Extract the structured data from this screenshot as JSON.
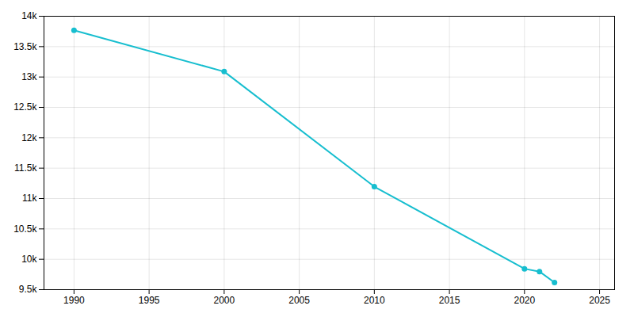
{
  "chart_data": {
    "type": "line",
    "x": [
      1990,
      2000,
      2010,
      2020,
      2021,
      2022
    ],
    "values": [
      13769,
      13089,
      11195,
      9844,
      9798,
      9617
    ],
    "color": "#17becf",
    "marker": "circle",
    "xlim": [
      1988,
      2026
    ],
    "ylim": [
      9500,
      14000
    ],
    "xticks": [
      1990,
      1995,
      2000,
      2005,
      2010,
      2015,
      2020,
      2025
    ],
    "yticks": [
      {
        "value": 9500,
        "label": "9.5k"
      },
      {
        "value": 10000,
        "label": "10k"
      },
      {
        "value": 10500,
        "label": "10.5k"
      },
      {
        "value": 11000,
        "label": "11k"
      },
      {
        "value": 11500,
        "label": "11.5k"
      },
      {
        "value": 12000,
        "label": "12k"
      },
      {
        "value": 12500,
        "label": "12.5k"
      },
      {
        "value": 13000,
        "label": "13k"
      },
      {
        "value": 13500,
        "label": "13.5k"
      },
      {
        "value": 14000,
        "label": "14k"
      }
    ],
    "grid": true
  }
}
